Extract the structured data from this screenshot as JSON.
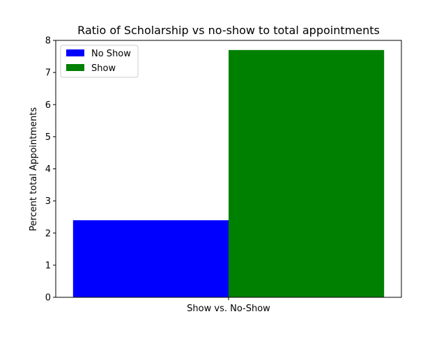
{
  "chart_data": {
    "type": "bar",
    "title": "Ratio of Scholarship vs no-show to total appointments",
    "xlabel": "",
    "ylabel": "Percent total Appointments",
    "categories": [
      "Show vs. No-Show"
    ],
    "ylim": [
      0,
      8
    ],
    "yticks": [
      "0",
      "1",
      "2",
      "3",
      "4",
      "5",
      "6",
      "7",
      "8"
    ],
    "grid": false,
    "legend_position": "top-left",
    "series": [
      {
        "name": "No Show",
        "values": [
          2.4
        ],
        "color": "#0000ff"
      },
      {
        "name": "Show",
        "values": [
          7.7
        ],
        "color": "#008000"
      }
    ]
  }
}
